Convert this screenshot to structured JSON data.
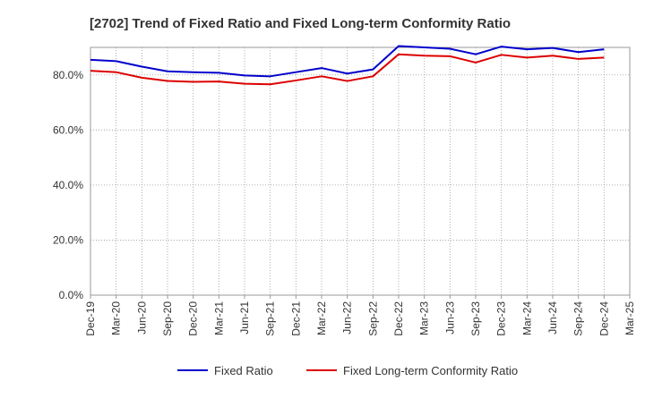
{
  "chart_data": {
    "type": "line",
    "title": "[2702]  Trend of Fixed Ratio and Fixed Long-term Conformity Ratio",
    "xlabel": "",
    "ylabel": "",
    "x": [
      "Dec-19",
      "Mar-20",
      "Jun-20",
      "Sep-20",
      "Dec-20",
      "Mar-21",
      "Jun-21",
      "Sep-21",
      "Dec-21",
      "Mar-22",
      "Jun-22",
      "Sep-22",
      "Dec-22",
      "Mar-23",
      "Jun-23",
      "Sep-23",
      "Dec-23",
      "Mar-24",
      "Jun-24",
      "Sep-24",
      "Dec-24",
      "Mar-25"
    ],
    "ylim": [
      0,
      90
    ],
    "yticks": [
      0,
      20,
      40,
      60,
      80
    ],
    "ytick_labels": [
      "0.0%",
      "20.0%",
      "40.0%",
      "60.0%",
      "80.0%"
    ],
    "grid": true,
    "legend_position": "bottom",
    "series": [
      {
        "name": "Fixed Ratio",
        "color": "#0000cc",
        "values": [
          85.5,
          85.0,
          83.0,
          81.3,
          81.0,
          80.8,
          79.8,
          79.5,
          81.0,
          82.5,
          80.5,
          82.0,
          90.5,
          90.0,
          89.5,
          87.5,
          90.3,
          89.3,
          89.8,
          88.3,
          89.3,
          null
        ]
      },
      {
        "name": "Fixed Long-term Conformity Ratio",
        "color": "#dd0000",
        "values": [
          81.5,
          81.0,
          79.0,
          77.8,
          77.5,
          77.6,
          76.8,
          76.6,
          78.0,
          79.5,
          77.8,
          79.5,
          87.5,
          87.0,
          86.8,
          84.5,
          87.3,
          86.3,
          87.0,
          85.8,
          86.3,
          null
        ]
      }
    ]
  }
}
